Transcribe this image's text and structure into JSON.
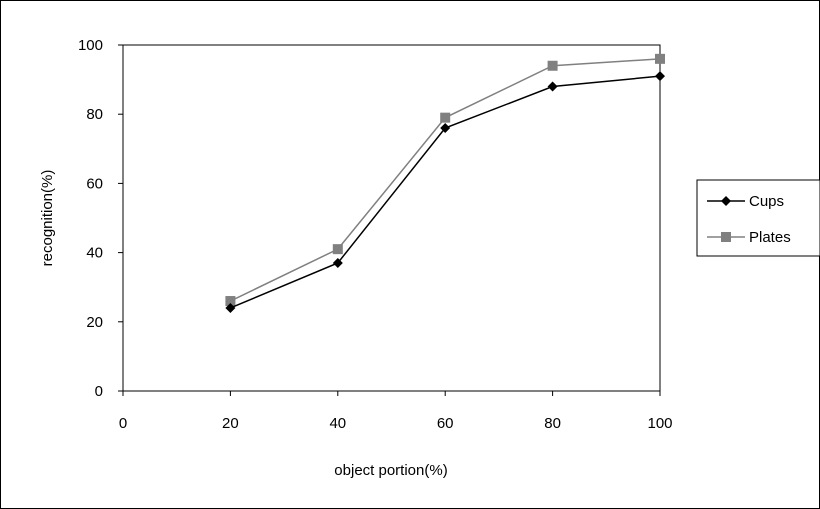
{
  "chart_data": {
    "type": "line",
    "title": "",
    "xlabel": "object portion(%)",
    "ylabel": "recognition(%)",
    "xlim": [
      0,
      100
    ],
    "ylim": [
      0,
      100
    ],
    "x_ticks": [
      0,
      20,
      40,
      60,
      80,
      100
    ],
    "y_ticks": [
      0,
      20,
      40,
      60,
      80,
      100
    ],
    "grid": false,
    "legend_position": "right",
    "x": [
      20,
      40,
      60,
      80,
      100
    ],
    "series": [
      {
        "name": "Cups",
        "values": [
          24,
          37,
          76,
          88,
          91
        ],
        "color": "#000000",
        "marker": "diamond"
      },
      {
        "name": "Plates",
        "values": [
          26,
          41,
          79,
          94,
          96
        ],
        "color": "#808080",
        "marker": "square"
      }
    ]
  }
}
